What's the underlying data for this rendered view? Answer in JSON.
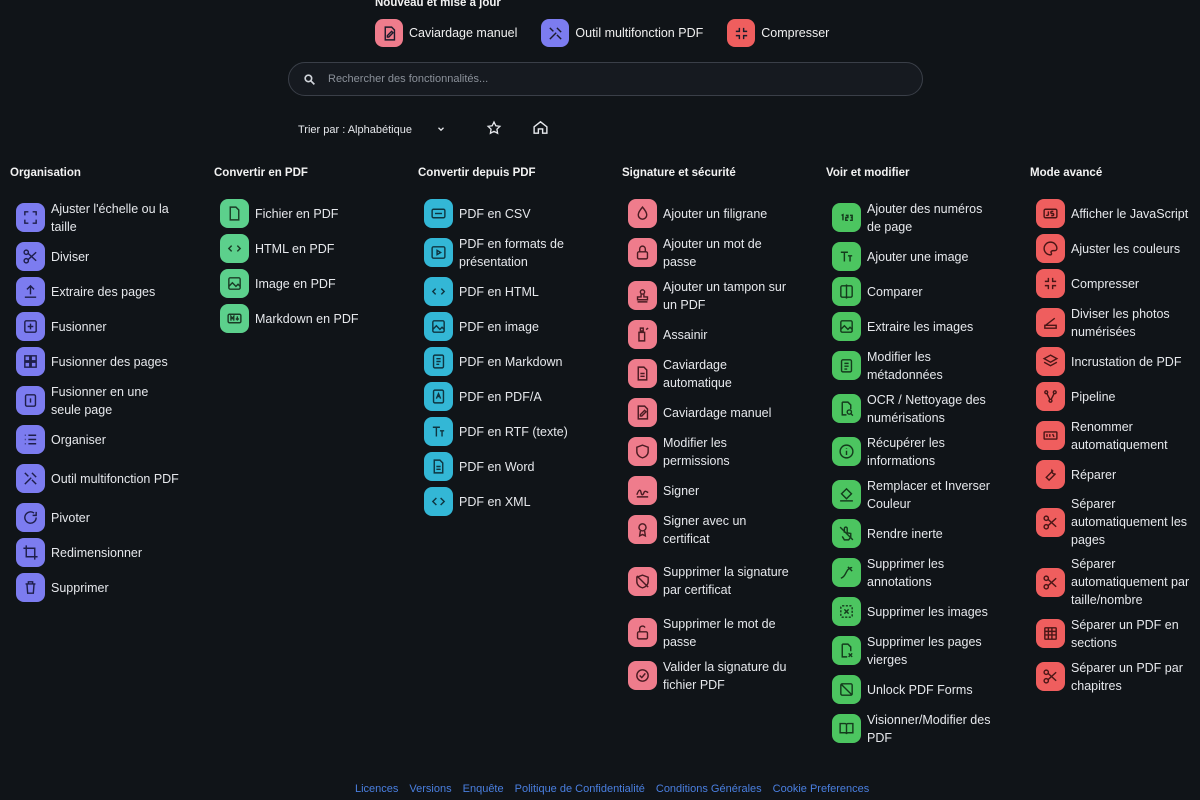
{
  "new_section": {
    "title": "Nouveau et mise à jour",
    "items": [
      {
        "label": "Caviardage manuel",
        "icon": "redact-icon",
        "color": "#ef7c8c"
      },
      {
        "label": "Outil multifonction PDF",
        "icon": "tools-icon",
        "color": "#7c7cf0"
      },
      {
        "label": "Compresser",
        "icon": "compress-icon",
        "color": "#ef5e5e"
      }
    ]
  },
  "search": {
    "placeholder": "Rechercher des fonctionnalités..."
  },
  "sort": {
    "label": "Trier par : Alphabétique"
  },
  "columns": [
    {
      "title": "Organisation",
      "items": [
        "Ajuster l'échelle ou la taille",
        "Diviser",
        "Extraire des pages",
        "Fusionner",
        "Fusionner des pages",
        "Fusionner en une seule page",
        "Organiser",
        "Outil multifonction PDF",
        "Pivoter",
        "Redimensionner",
        "Supprimer"
      ]
    },
    {
      "title": "Convertir en PDF",
      "items": [
        "Fichier en PDF",
        "HTML en PDF",
        "Image en PDF",
        "Markdown en PDF"
      ]
    },
    {
      "title": "Convertir depuis PDF",
      "items": [
        "PDF en CSV",
        "PDF en formats de présentation",
        "PDF en HTML",
        "PDF en image",
        "PDF en Markdown",
        "PDF en PDF/A",
        "PDF en RTF (texte)",
        "PDF en Word",
        "PDF en XML"
      ]
    },
    {
      "title": "Signature et sécurité",
      "items": [
        "Ajouter un filigrane",
        "Ajouter un mot de passe",
        "Ajouter un tampon sur un PDF",
        "Assainir",
        "Caviardage automatique",
        "Caviardage manuel",
        "Modifier les permissions",
        "Signer",
        "Signer avec un certificat",
        "Supprimer la signature par certificat",
        "Supprimer le mot de passe",
        "Valider la signature du fichier PDF"
      ]
    },
    {
      "title": "Voir et modifier",
      "items": [
        "Ajouter des numéros de page",
        "Ajouter une image",
        "Comparer",
        "Extraire les images",
        "Modifier les métadonnées",
        "OCR / Nettoyage des numérisations",
        "Récupérer les informations",
        "Remplacer et Inverser Couleur",
        "Rendre inerte",
        "Supprimer les annotations",
        "Supprimer les images",
        "Supprimer les pages vierges",
        "Unlock PDF Forms",
        "Visionner/Modifier des PDF"
      ]
    },
    {
      "title": "Mode avancé",
      "items": [
        "Afficher le JavaScript",
        "Ajuster les couleurs",
        "Compresser",
        "Diviser les photos numérisées",
        "Incrustation de PDF",
        "Pipeline",
        "Renommer automatiquement",
        "Réparer",
        "Séparer automatiquement les pages",
        "Séparer automatiquement par taille/nombre",
        "Séparer un PDF en sections",
        "Séparer un PDF par chapitres"
      ]
    }
  ],
  "footer": [
    "Licences",
    "Versions",
    "Enquête",
    "Politique de Confidentialité",
    "Conditions Générales",
    "Cookie Preferences"
  ]
}
